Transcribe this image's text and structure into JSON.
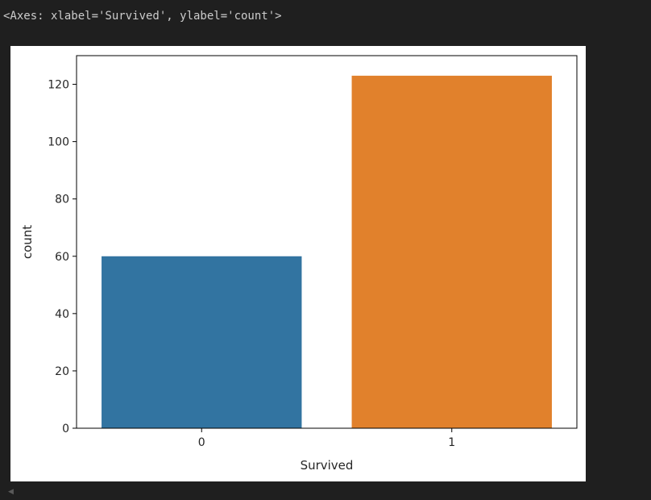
{
  "output": {
    "text": "<Axes: xlabel='Survived', ylabel='count'>"
  },
  "scroll_icon": "caret-left-icon",
  "chart_data": {
    "type": "bar",
    "categories": [
      "0",
      "1"
    ],
    "values": [
      60,
      123
    ],
    "colors": [
      "#3274a1",
      "#e1812c"
    ],
    "title": "",
    "xlabel": "Survived",
    "ylabel": "count",
    "ylim": [
      0,
      130
    ],
    "yticks": [
      0,
      20,
      40,
      60,
      80,
      100,
      120
    ],
    "grid": false
  }
}
